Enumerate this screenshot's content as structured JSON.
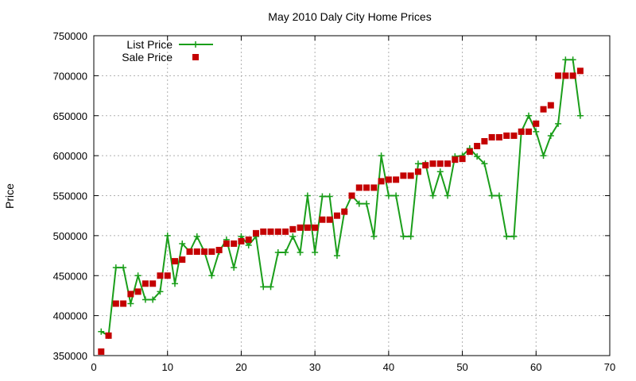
{
  "chart_data": {
    "type": "line",
    "title": "May 2010 Daly City Home Prices",
    "xlabel": "",
    "ylabel": "Price",
    "xlim": [
      0,
      70
    ],
    "ylim": [
      350000,
      750000
    ],
    "xticks": [
      "0",
      "10",
      "20",
      "30",
      "40",
      "50",
      "60",
      "70"
    ],
    "yticks": [
      "350000",
      "400000",
      "450000",
      "500000",
      "550000",
      "600000",
      "650000",
      "700000",
      "750000"
    ],
    "grid": true,
    "legend_position": "top-left",
    "x": [
      1,
      2,
      3,
      4,
      5,
      6,
      7,
      8,
      9,
      10,
      11,
      12,
      13,
      14,
      15,
      16,
      17,
      18,
      19,
      20,
      21,
      22,
      23,
      24,
      25,
      26,
      27,
      28,
      29,
      30,
      31,
      32,
      33,
      34,
      35,
      36,
      37,
      38,
      39,
      40,
      41,
      42,
      43,
      44,
      45,
      46,
      47,
      48,
      49,
      50,
      51,
      52,
      53,
      54,
      55,
      56,
      57,
      58,
      59,
      60,
      61,
      62,
      63,
      64,
      65,
      66
    ],
    "series": [
      {
        "name": "List Price",
        "style": "line-plus",
        "color": "#1a9e1a",
        "values": [
          380000,
          375000,
          460000,
          460000,
          415000,
          450000,
          420000,
          420000,
          430000,
          500000,
          440000,
          490000,
          480000,
          499000,
          480000,
          450000,
          480000,
          495000,
          460000,
          499000,
          488000,
          499000,
          436000,
          436000,
          479000,
          479000,
          499000,
          479000,
          550000,
          479000,
          549000,
          549000,
          475000,
          530000,
          550000,
          540000,
          540000,
          499000,
          600000,
          550000,
          550000,
          499000,
          499000,
          590000,
          590000,
          550000,
          580000,
          550000,
          599000,
          600000,
          609000,
          599000,
          590000,
          550000,
          550000,
          499000,
          499000,
          630000,
          650000,
          630000,
          600000,
          625000,
          640000,
          720000,
          720000,
          650000
        ]
      },
      {
        "name": "Sale Price",
        "style": "square-markers",
        "color": "#c40000",
        "values": [
          355000,
          375000,
          415000,
          415000,
          427000,
          430000,
          440000,
          440000,
          450000,
          450000,
          468000,
          470000,
          480000,
          480000,
          480000,
          480000,
          482000,
          490000,
          490000,
          493000,
          495000,
          503000,
          505000,
          505000,
          505000,
          505000,
          508000,
          510000,
          510000,
          510000,
          520000,
          520000,
          525000,
          530000,
          550000,
          560000,
          560000,
          560000,
          568000,
          570000,
          570000,
          575000,
          575000,
          580000,
          588000,
          590000,
          590000,
          590000,
          595000,
          596000,
          605000,
          612000,
          618000,
          623000,
          623000,
          625000,
          625000,
          630000,
          630000,
          640000,
          658000,
          663000,
          700000,
          700000,
          700000,
          706000
        ]
      }
    ]
  }
}
